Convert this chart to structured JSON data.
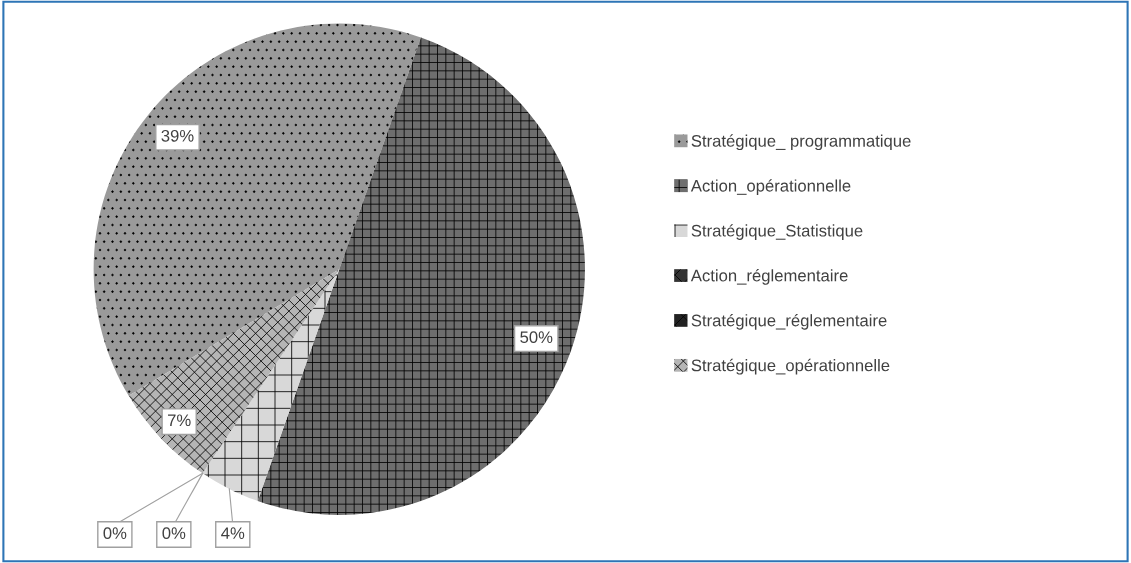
{
  "chart_data": {
    "type": "pie",
    "categories": [
      "Stratégique_ programmatique",
      "Action_opérationnelle",
      "Stratégique_Statistique",
      "Action_réglementaire",
      "Stratégique_réglementaire",
      "Stratégique_opérationnelle"
    ],
    "values": [
      39,
      50,
      4,
      0,
      0,
      7
    ],
    "colors": [
      "#9a9a9a",
      "#6e6e6e",
      "#d8d8d8",
      "#333333",
      "#222222",
      "#b5b5b5"
    ],
    "data_labels": true,
    "value_labels": [
      "39%",
      "50%",
      "4%",
      "0%",
      "0%",
      "7%"
    ],
    "legend": "right"
  }
}
